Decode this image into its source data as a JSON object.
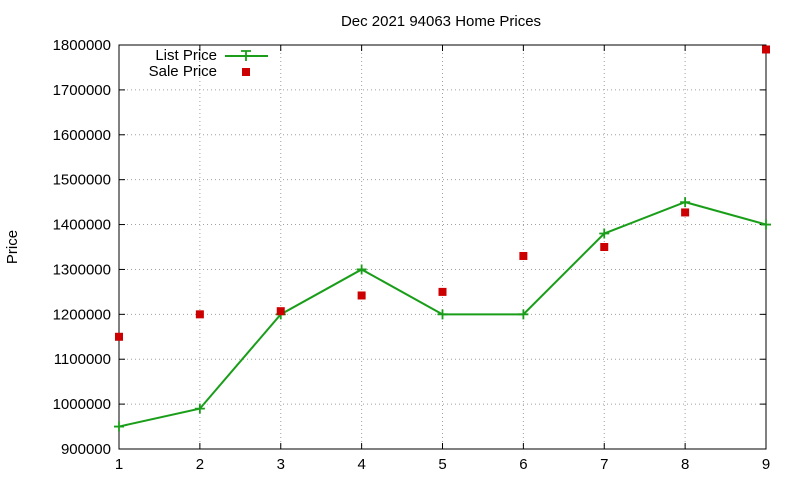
{
  "chart_data": {
    "type": "line",
    "title": "Dec 2021 94063 Home Prices",
    "xlabel": "",
    "ylabel": "Price",
    "xlim": [
      1,
      9
    ],
    "ylim": [
      900000,
      1800000
    ],
    "x_ticks": [
      1,
      2,
      3,
      4,
      5,
      6,
      7,
      8,
      9
    ],
    "y_ticks": [
      900000,
      1000000,
      1100000,
      1200000,
      1300000,
      1400000,
      1500000,
      1600000,
      1700000,
      1800000
    ],
    "grid": true,
    "legend_position": "top-left",
    "series": [
      {
        "name": "List Price",
        "style": "line-with-plus-markers",
        "color": "#1a9e1a",
        "x": [
          1,
          2,
          3,
          4,
          5,
          6,
          7,
          8,
          9
        ],
        "values": [
          950000,
          990000,
          1200000,
          1300000,
          1200000,
          1200000,
          1380000,
          1450000,
          1400000
        ]
      },
      {
        "name": "Sale Price",
        "style": "square-markers",
        "color": "#cc0000",
        "x": [
          1,
          2,
          3,
          4,
          5,
          6,
          7,
          8,
          9
        ],
        "values": [
          1150000,
          1200000,
          1207000,
          1242000,
          1250000,
          1330000,
          1350000,
          1427000,
          1790000
        ]
      }
    ]
  }
}
